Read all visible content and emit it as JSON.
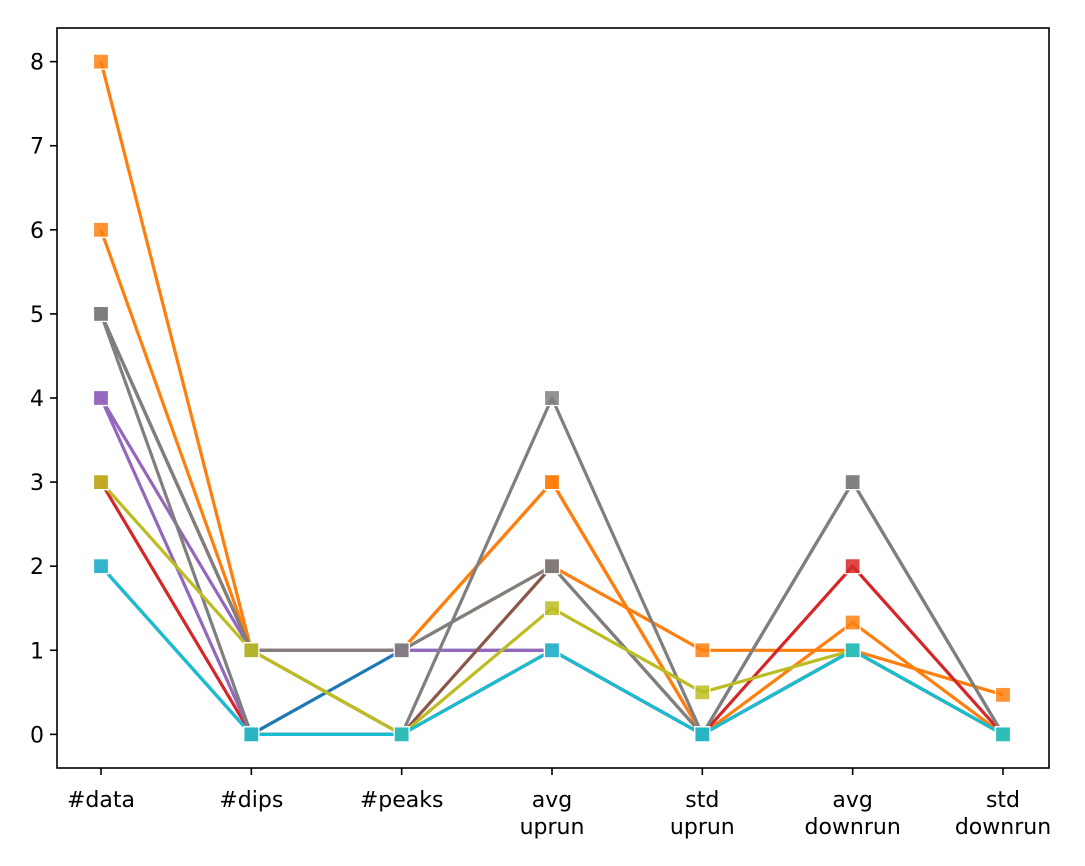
{
  "chart_data": {
    "type": "line",
    "categories": [
      "#data",
      "#dips",
      "#peaks",
      "avg\nuprun",
      "std\nuprun",
      "avg\ndownrun",
      "std\ndownrun"
    ],
    "y_ticks": [
      0,
      1,
      2,
      3,
      4,
      5,
      6,
      7,
      8
    ],
    "ylim": [
      -0.4,
      8.4
    ],
    "marker": "square",
    "grid": false,
    "series": [
      {
        "color": "#1f77b4",
        "values": [
          2,
          0,
          1,
          1,
          0,
          1,
          0
        ]
      },
      {
        "color": "#ff7f0e",
        "values": [
          8,
          1,
          1,
          3,
          0,
          1,
          0
        ]
      },
      {
        "color": "#ff7f0e",
        "values": [
          6,
          1,
          1,
          2,
          1,
          1,
          0.47
        ]
      },
      {
        "color": "#ff7f0e",
        "values": [
          5,
          1,
          1,
          3,
          0,
          1.33,
          0
        ]
      },
      {
        "color": "#d62728",
        "values": [
          3,
          0,
          0,
          1,
          0,
          2,
          0
        ]
      },
      {
        "color": "#9467bd",
        "values": [
          4,
          1,
          1,
          1,
          0,
          1,
          0
        ]
      },
      {
        "color": "#9467bd",
        "values": [
          4,
          0,
          0,
          1,
          0,
          1,
          0
        ]
      },
      {
        "color": "#8c564b",
        "values": [
          5,
          1,
          0,
          2,
          0,
          1,
          0
        ]
      },
      {
        "color": "#e377c2",
        "values": [
          2,
          0,
          0,
          1,
          0,
          1,
          0
        ]
      },
      {
        "color": "#7f7f7f",
        "values": [
          5,
          1,
          1,
          2,
          0,
          3,
          0
        ]
      },
      {
        "color": "#7f7f7f",
        "values": [
          5,
          0,
          0,
          4,
          0,
          3,
          0
        ]
      },
      {
        "color": "#bcbd22",
        "values": [
          3,
          1,
          0,
          1.5,
          0.5,
          1,
          0
        ]
      },
      {
        "color": "#17becf",
        "values": [
          2,
          0,
          0,
          1,
          0,
          1,
          0
        ]
      }
    ]
  }
}
